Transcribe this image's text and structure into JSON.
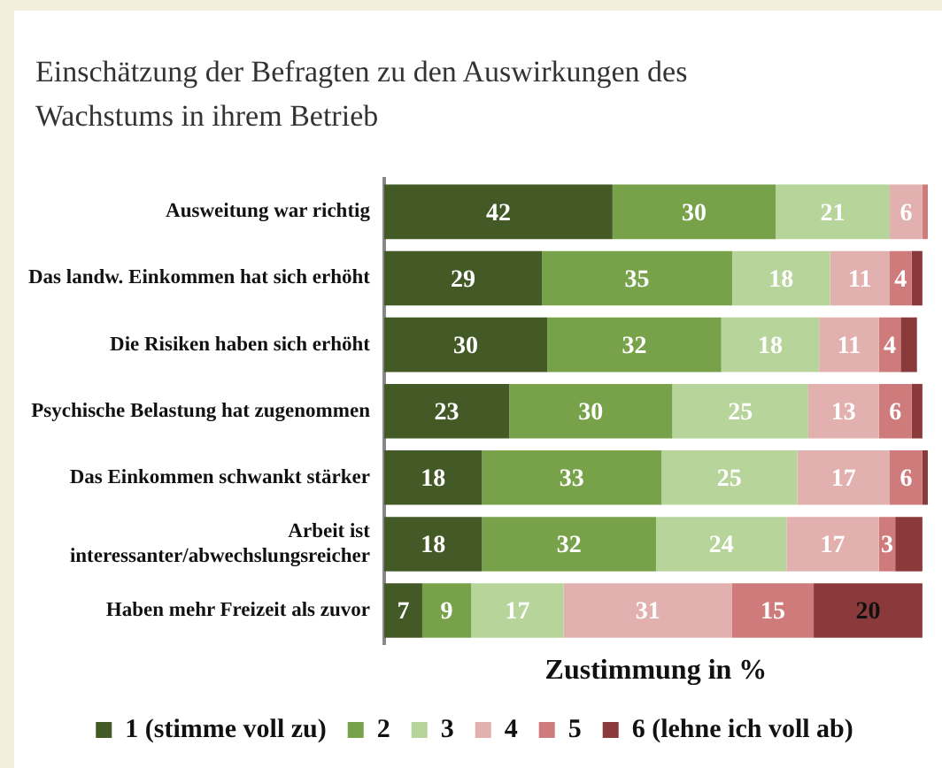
{
  "chart_data": {
    "type": "bar",
    "orientation": "horizontal",
    "stacked": true,
    "title": "Einschätzung der Befragten zu den Auswirkungen des Wachstums in ihrem Betrieb",
    "xlabel": "Zustimmung in %",
    "categories": [
      "Ausweitung war richtig",
      "Das landw. Einkommen hat sich erhöht",
      "Die Risiken haben sich erhöht",
      "Psychische Belastung hat zugenommen",
      "Das Einkommen schwankt stärker",
      "Arbeit ist interessanter/abwechslungsreicher",
      "Haben mehr Freizeit als zuvor"
    ],
    "series": [
      {
        "name": "1 (stimme voll zu)",
        "color": "#435a27",
        "values": [
          42,
          29,
          30,
          23,
          18,
          18,
          7
        ],
        "value_labels": [
          "42",
          "29",
          "30",
          "23",
          "18",
          "18",
          "7"
        ]
      },
      {
        "name": "2",
        "color": "#78a24a",
        "values": [
          30,
          35,
          32,
          30,
          33,
          32,
          9
        ],
        "value_labels": [
          "30",
          "35",
          "32",
          "30",
          "33",
          "32",
          "9"
        ]
      },
      {
        "name": "3",
        "color": "#b7d49b",
        "values": [
          21,
          18,
          18,
          25,
          25,
          24,
          17
        ],
        "value_labels": [
          "21",
          "18",
          "18",
          "25",
          "25",
          "24",
          "17"
        ]
      },
      {
        "name": "4",
        "color": "#e3b0b0",
        "values": [
          6,
          11,
          11,
          13,
          17,
          17,
          31
        ],
        "value_labels": [
          "6",
          "11",
          "11",
          "13",
          "17",
          "17",
          "31"
        ]
      },
      {
        "name": "5",
        "color": "#cf7b7b",
        "values": [
          1,
          4,
          4,
          6,
          6,
          3,
          15
        ],
        "value_labels": [
          null,
          "4",
          "4",
          "6",
          "6",
          "3",
          "15"
        ]
      },
      {
        "name": "6 (lehne ich voll ab)",
        "color": "#8b3a3c",
        "values": [
          null,
          2,
          3,
          2,
          1,
          5,
          20
        ],
        "value_labels": [
          null,
          null,
          null,
          null,
          null,
          null,
          "20"
        ]
      }
    ],
    "legend": "bottom",
    "grid": false,
    "tick_labels": "y"
  }
}
